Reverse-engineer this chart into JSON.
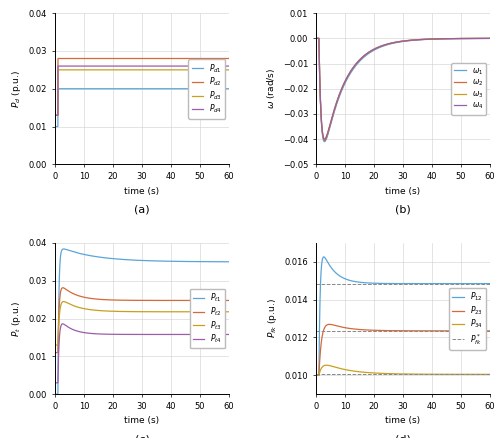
{
  "colors": {
    "blue": "#5aa5d8",
    "orange": "#d4693a",
    "yellow": "#c8a020",
    "purple": "#9b5daa"
  },
  "panel_a": {
    "xlim": [
      0,
      60
    ],
    "ylim": [
      0,
      0.04
    ],
    "yticks": [
      0,
      0.01,
      0.02,
      0.03,
      0.04
    ],
    "xticks": [
      0,
      10,
      20,
      30,
      40,
      50,
      60
    ],
    "step_time": 1.0,
    "Pd1_before": 0.01,
    "Pd1_after": 0.02,
    "Pd2_before": 0.013,
    "Pd2_after": 0.028,
    "Pd3_before": 0.013,
    "Pd3_after": 0.025,
    "Pd4_before": 0.013,
    "Pd4_after": 0.026
  },
  "panel_b": {
    "xlim": [
      0,
      60
    ],
    "ylim": [
      -0.05,
      0.01
    ],
    "yticks": [
      -0.05,
      -0.04,
      -0.03,
      -0.02,
      -0.01,
      0,
      0.01
    ],
    "xticks": [
      0,
      10,
      20,
      30,
      40,
      50,
      60
    ]
  },
  "panel_c": {
    "xlim": [
      0,
      60
    ],
    "ylim": [
      0,
      0.04
    ],
    "yticks": [
      0,
      0.01,
      0.02,
      0.03,
      0.04
    ],
    "xticks": [
      0,
      10,
      20,
      30,
      40,
      50,
      60
    ]
  },
  "panel_d": {
    "xlim": [
      0,
      60
    ],
    "ylim": [
      0.009,
      0.017
    ],
    "yticks": [
      0.01,
      0.012,
      0.014,
      0.016
    ],
    "xticks": [
      0,
      10,
      20,
      30,
      40,
      50,
      60
    ],
    "dashes": [
      0.01485,
      0.01235,
      0.01005
    ]
  }
}
